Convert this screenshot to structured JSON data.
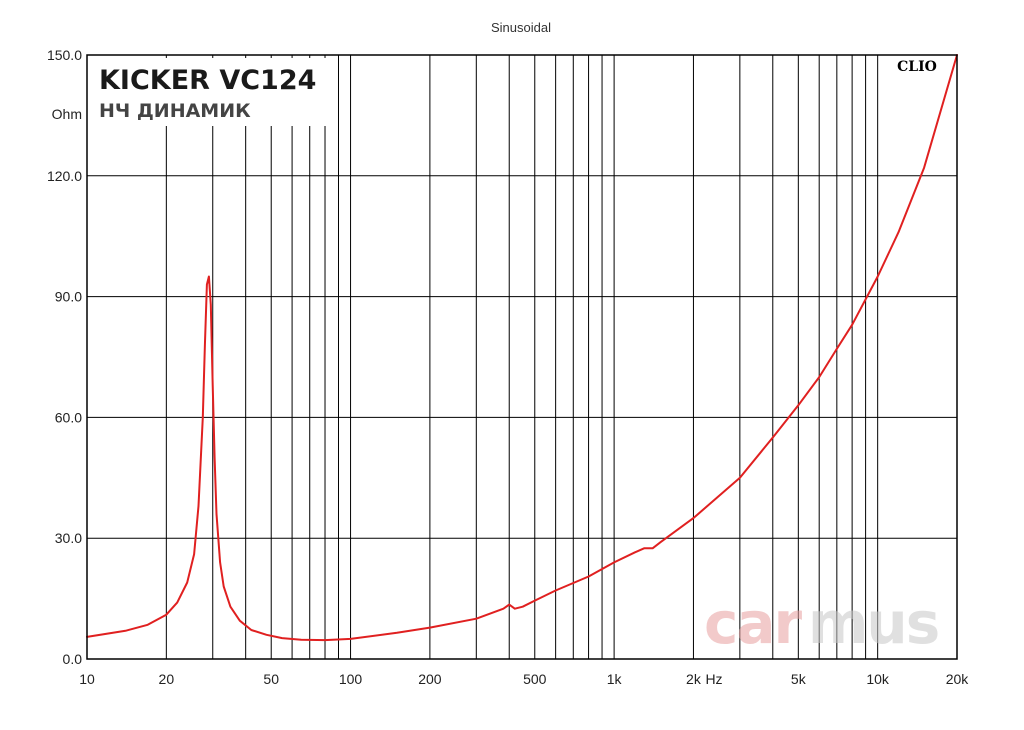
{
  "chart_data": {
    "type": "line",
    "title": "Sinusoidal",
    "ylabel": "Ohm",
    "xlabel": "Hz",
    "xscale": "log",
    "xlim": [
      10,
      20000
    ],
    "ylim": [
      0,
      150
    ],
    "grid": true,
    "yticks": [
      "0.0",
      "30.0",
      "60.0",
      "90.0",
      "120.0",
      "150.0"
    ],
    "xticks": [
      {
        "value": 10,
        "label": "10"
      },
      {
        "value": 20,
        "label": "20"
      },
      {
        "value": 50,
        "label": "50"
      },
      {
        "value": 100,
        "label": "100"
      },
      {
        "value": 200,
        "label": "200"
      },
      {
        "value": 500,
        "label": "500"
      },
      {
        "value": 1000,
        "label": "1k"
      },
      {
        "value": 2000,
        "label": "2k"
      },
      {
        "value": 5000,
        "label": "5k"
      },
      {
        "value": 10000,
        "label": "10k"
      },
      {
        "value": 20000,
        "label": "20k"
      }
    ],
    "series": [
      {
        "color": "#e02020",
        "x": [
          10,
          14,
          17,
          20,
          22,
          24,
          25.5,
          26.5,
          27.5,
          28,
          28.5,
          29,
          29.5,
          30,
          30.5,
          31,
          32,
          33,
          35,
          38,
          42,
          48,
          55,
          65,
          80,
          100,
          150,
          200,
          300,
          380,
          400,
          420,
          450,
          500,
          600,
          800,
          1000,
          1200,
          1300,
          1400,
          1500,
          2000,
          3000,
          4000,
          5000,
          6000,
          7000,
          8000,
          10000,
          12000,
          15000,
          20000
        ],
        "y": [
          5.5,
          7.0,
          8.5,
          11.0,
          14.0,
          19.0,
          26.0,
          38.0,
          60.0,
          78.0,
          93.0,
          95.0,
          88.0,
          68.0,
          50.0,
          36.0,
          24.0,
          18.0,
          13.0,
          9.5,
          7.2,
          6.0,
          5.2,
          4.8,
          4.7,
          5.0,
          6.5,
          7.8,
          10.0,
          12.5,
          13.5,
          12.5,
          13.0,
          14.5,
          17.0,
          20.5,
          24.0,
          26.5,
          27.5,
          27.5,
          29.0,
          35.0,
          45.0,
          55.0,
          63.0,
          70.0,
          77.0,
          83.0,
          95.0,
          106.0,
          122.0,
          150.0
        ]
      }
    ]
  },
  "brand": {
    "title": "KICKER VC124",
    "subtitle": "НЧ ДИНАМИК",
    "clio": "CLIO",
    "watermark_left": "car",
    "watermark_right": "mus",
    "watermark_color_left": "#e8a0a0",
    "watermark_color_right": "#c8c8c8"
  }
}
